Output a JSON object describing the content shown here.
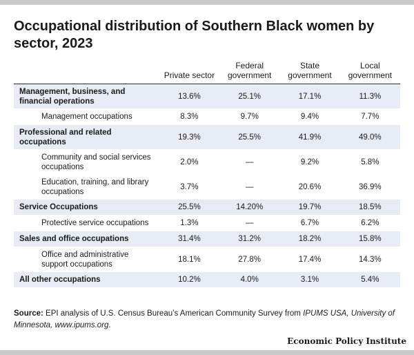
{
  "chart_data": {
    "type": "table",
    "title": "Occupational distribution of Southern Black women by sector, 2023",
    "columns": [
      "",
      "Private sector",
      "Federal government",
      "State government",
      "Local government"
    ],
    "rows": [
      {
        "level": "major",
        "label": "Management, business, and financial operations",
        "values": [
          "13.6%",
          "25.1%",
          "17.1%",
          "11.3%"
        ]
      },
      {
        "level": "sub",
        "label": "Management occupations",
        "values": [
          "8.3%",
          "9.7%",
          "9.4%",
          "7.7%"
        ]
      },
      {
        "level": "major",
        "label": "Professional and related occupations",
        "values": [
          "19.3%",
          "25.5%",
          "41.9%",
          "49.0%"
        ]
      },
      {
        "level": "sub",
        "label": "Community and social services occupations",
        "values": [
          "2.0%",
          "—",
          "9.2%",
          "5.8%"
        ]
      },
      {
        "level": "sub",
        "label": "Education, training, and library occupations",
        "values": [
          "3.7%",
          "—",
          "20.6%",
          "36.9%"
        ]
      },
      {
        "level": "major",
        "label": "Service Occupations",
        "values": [
          "25.5%",
          "14.20%",
          "19.7%",
          "18.5%"
        ]
      },
      {
        "level": "sub",
        "label": "Protective service occupations",
        "values": [
          "1.3%",
          "—",
          "6.7%",
          "6.2%"
        ]
      },
      {
        "level": "major",
        "label": "Sales and office occupations",
        "values": [
          "31.4%",
          "31.2%",
          "18.2%",
          "15.8%"
        ]
      },
      {
        "level": "sub",
        "label": "Office and administrative support occupations",
        "values": [
          "18.1%",
          "27.8%",
          "17.4%",
          "14.3%"
        ]
      },
      {
        "level": "major",
        "label": "All other occupations",
        "values": [
          "10.2%",
          "4.0%",
          "3.1%",
          "5.4%"
        ]
      }
    ]
  },
  "source": {
    "label": "Source:",
    "text_1": " EPI analysis of U.S. Census Bureau’s American Community Survey from ",
    "italic": "IPUMS USA, University of Minnesota, www.ipums.org",
    "text_2": "."
  },
  "branding": {
    "org_name": "Economic Policy Institute"
  },
  "colors": {
    "major_row_bg": "#e6ebf4",
    "frame_bar": "#c9c9c9",
    "text": "#1a1a1a"
  }
}
